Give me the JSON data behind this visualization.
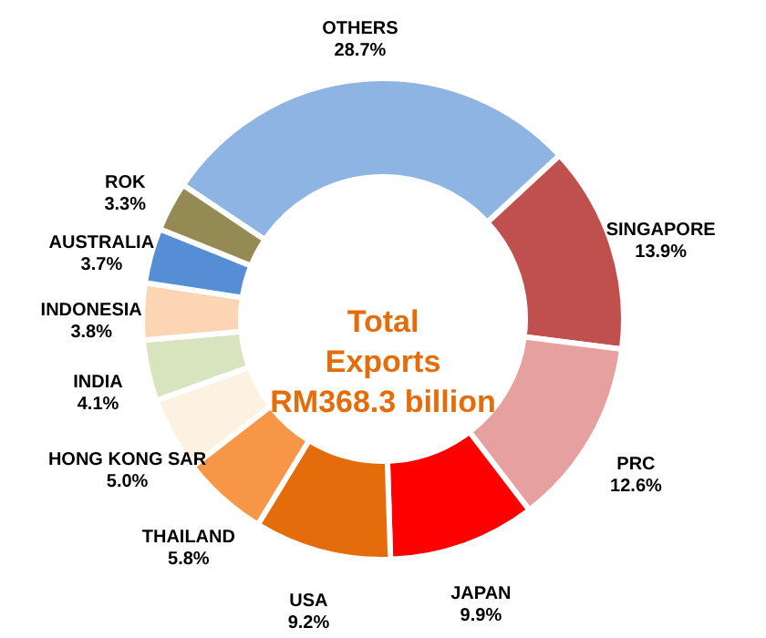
{
  "chart_data": {
    "type": "donut",
    "title": "Total\nExports\nRM368.3 billion",
    "categories": [
      "OTHERS",
      "SINGAPORE",
      "PRC",
      "JAPAN",
      "USA",
      "THAILAND",
      "HONG KONG SAR",
      "INDIA",
      "INDONESIA",
      "AUSTRALIA",
      "ROK"
    ],
    "values": [
      28.7,
      13.9,
      12.6,
      9.9,
      9.2,
      5.8,
      5.0,
      4.1,
      3.8,
      3.7,
      3.3
    ],
    "value_labels": [
      "28.7%",
      "13.9%",
      "12.6%",
      "9.9%",
      "9.2%",
      "5.8%",
      "5.0%",
      "4.1%",
      "3.8%",
      "3.7%",
      "3.3%"
    ],
    "colors": [
      "#8db4e2",
      "#c0504d",
      "#e6a0a0",
      "#ff0000",
      "#e46c0a",
      "#f79646",
      "#fdf2e2",
      "#d7e4bd",
      "#fcd5b4",
      "#558ed5",
      "#948a54"
    ]
  }
}
